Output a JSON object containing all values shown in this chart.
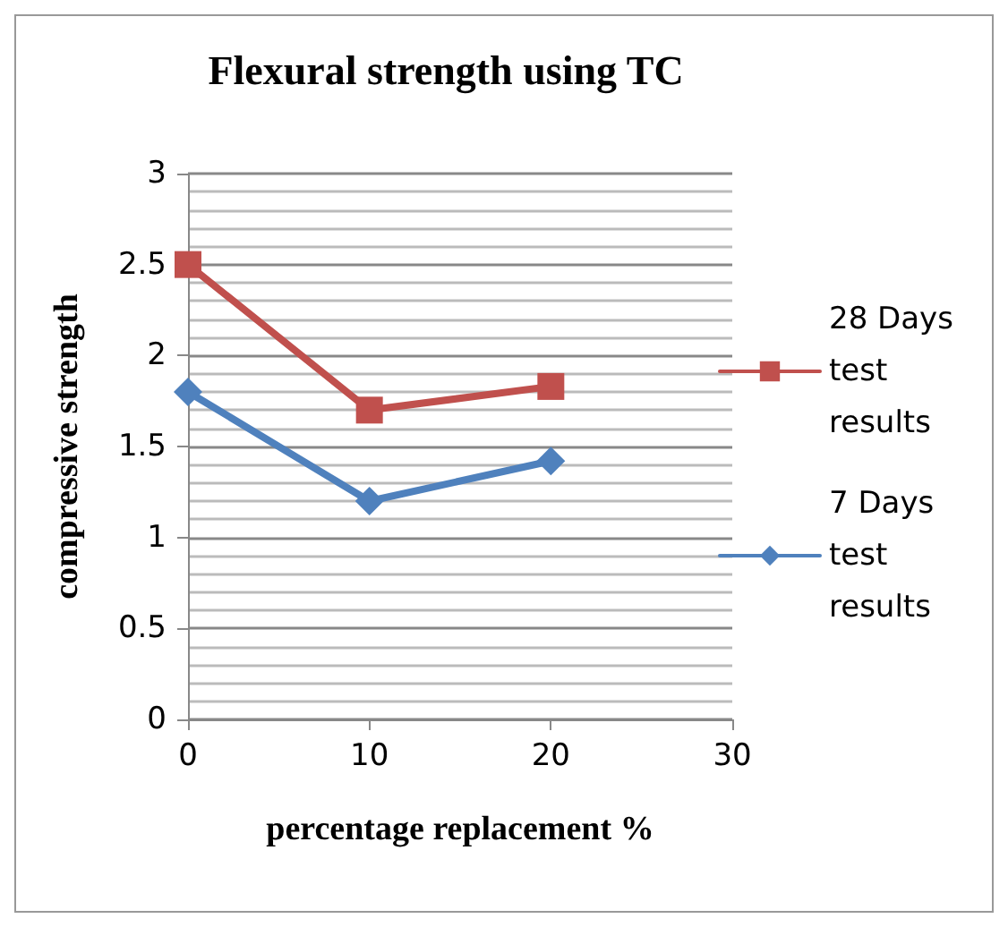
{
  "chart_data": {
    "type": "line",
    "title": "Flexural strength using TC",
    "xlabel": "percentage replacement %",
    "ylabel": "compressive strength",
    "x": [
      0,
      10,
      20
    ],
    "xlim": [
      0,
      30
    ],
    "xticks": [
      0,
      10,
      20,
      30
    ],
    "ylim": [
      0,
      3
    ],
    "yticks": [
      0,
      0.5,
      1,
      1.5,
      2,
      2.5,
      3
    ],
    "grid": "y",
    "legend": "right",
    "series": [
      {
        "name": "28 Days test results",
        "color": "#c0504d",
        "values": [
          2.5,
          1.7,
          1.83
        ],
        "marker": "square"
      },
      {
        "name": "7 Days test results",
        "color": "#4f81bd",
        "values": [
          1.8,
          1.2,
          1.42
        ],
        "marker": "diamond"
      }
    ]
  }
}
